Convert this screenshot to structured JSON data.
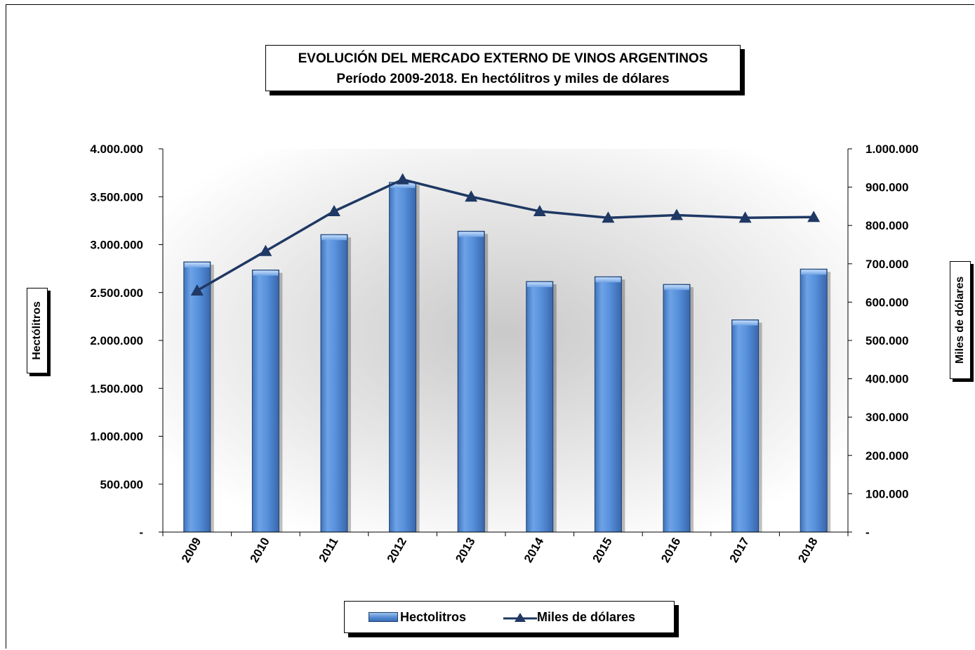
{
  "chart_data": {
    "type": "bar",
    "title": "EVOLUCIÓN DEL MERCADO EXTERNO DE VINOS ARGENTINOS",
    "subtitle": "Período 2009-2018.  En hectólitros y miles de dólares",
    "categories": [
      "2009",
      "2010",
      "2011",
      "2012",
      "2013",
      "2014",
      "2015",
      "2016",
      "2017",
      "2018"
    ],
    "ylabel": "Hectólitros",
    "y2label": "Miles de dólares",
    "ylim": [
      0,
      4000000
    ],
    "y2lim": [
      0,
      1000000
    ],
    "yticks": [
      0,
      500000,
      1000000,
      1500000,
      2000000,
      2500000,
      3000000,
      3500000,
      4000000
    ],
    "yticklabels": [
      "-",
      "500.000",
      "1.000.000",
      "1.500.000",
      "2.000.000",
      "2.500.000",
      "3.000.000",
      "3.500.000",
      "4.000.000"
    ],
    "y2ticks": [
      0,
      100000,
      200000,
      300000,
      400000,
      500000,
      600000,
      700000,
      800000,
      900000,
      1000000
    ],
    "y2ticklabels": [
      "-",
      "100.000",
      "200.000",
      "300.000",
      "400.000",
      "500.000",
      "600.000",
      "700.000",
      "800.000",
      "900.000",
      "1.000.000"
    ],
    "series": [
      {
        "name": "Hectolitros",
        "type": "bar",
        "axis": "left",
        "color": "#5891dc",
        "values": [
          2820000,
          2735000,
          3105000,
          3650000,
          3140000,
          2615000,
          2665000,
          2585000,
          2215000,
          2745000
        ]
      },
      {
        "name": "Miles de dólares",
        "type": "line",
        "axis": "right",
        "color": "#1f3864",
        "marker": "triangle",
        "values": [
          630000,
          733000,
          837000,
          920000,
          875000,
          837000,
          820000,
          827000,
          820000,
          822000
        ]
      }
    ],
    "grid": false,
    "legend": "bottom"
  }
}
